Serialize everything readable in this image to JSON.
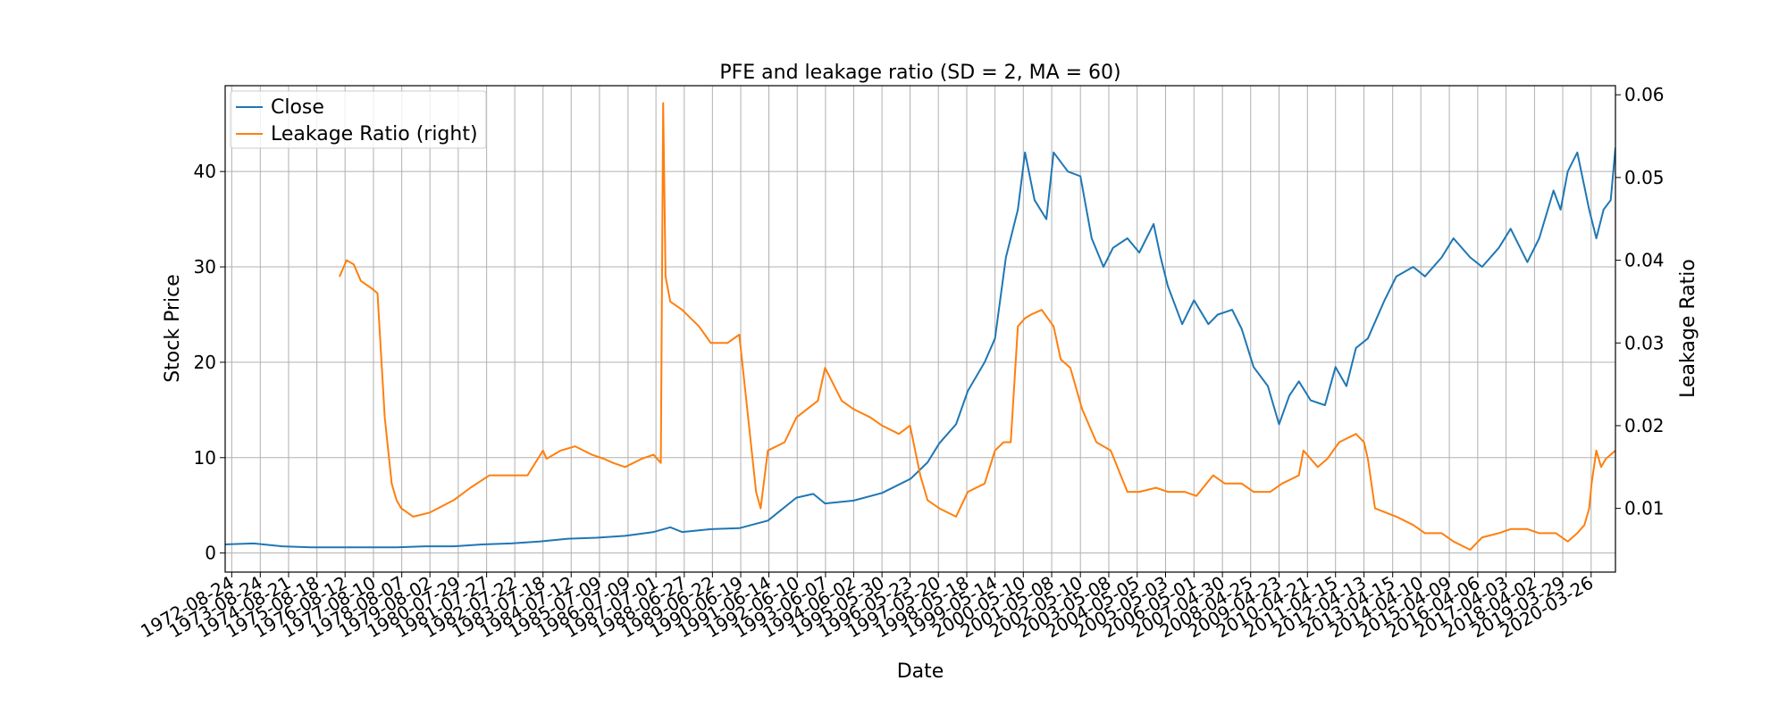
{
  "chart_data": {
    "type": "line",
    "title": "PFE and leakage ratio (SD = 2, MA = 60)",
    "xlabel": "Date",
    "ylabel": "Stock Price",
    "ylabel_right": "Leakage Ratio",
    "xlim": [
      "1972-06-01",
      "2021-01-31"
    ],
    "ylim": [
      -2,
      49
    ],
    "ylim_right": [
      0.0023,
      0.0611
    ],
    "grid": true,
    "legend_position": "top-left",
    "x_tick_labels": [
      "1972-08-24",
      "1973-08-24",
      "1974-08-21",
      "1975-08-18",
      "1976-08-12",
      "1977-08-10",
      "1978-08-07",
      "1979-08-02",
      "1980-07-29",
      "1981-07-27",
      "1982-07-22",
      "1983-07-18",
      "1984-07-12",
      "1985-07-09",
      "1986-07-09",
      "1987-07-01",
      "1988-06-27",
      "1989-06-22",
      "1990-06-19",
      "1991-06-14",
      "1992-06-10",
      "1993-06-07",
      "1994-06-02",
      "1995-05-30",
      "1996-05-23",
      "1997-05-20",
      "1998-05-18",
      "1999-05-14",
      "2000-05-10",
      "2001-05-08",
      "2002-05-10",
      "2003-05-08",
      "2004-05-05",
      "2005-05-03",
      "2006-05-01",
      "2007-04-30",
      "2008-04-25",
      "2009-04-23",
      "2010-04-21",
      "2011-04-15",
      "2012-04-13",
      "2013-04-15",
      "2014-04-10",
      "2015-04-09",
      "2016-04-06",
      "2017-04-03",
      "2018-04-02",
      "2019-03-29",
      "2020-03-26"
    ],
    "y_ticks": [
      0,
      10,
      20,
      30,
      40
    ],
    "y_ticks_right": [
      0.01,
      0.02,
      0.03,
      0.04,
      0.05,
      0.06
    ],
    "y_ticks_right_labels": [
      "0.01",
      "0.02",
      "0.03",
      "0.04",
      "0.05",
      "0.06"
    ],
    "series": [
      {
        "name": "Close",
        "axis": "left",
        "color": "#1f77b4",
        "x": [
          "1972-06-01",
          "1973-06-01",
          "1974-06-01",
          "1975-06-01",
          "1976-06-01",
          "1977-06-01",
          "1978-06-01",
          "1979-06-01",
          "1980-06-01",
          "1981-06-01",
          "1982-06-01",
          "1983-06-01",
          "1984-06-01",
          "1985-06-01",
          "1986-06-01",
          "1987-06-01",
          "1988-01-01",
          "1988-06-01",
          "1989-06-01",
          "1990-06-01",
          "1991-06-01",
          "1992-06-01",
          "1993-01-01",
          "1993-06-01",
          "1994-06-01",
          "1995-06-01",
          "1996-06-01",
          "1997-01-01",
          "1997-06-01",
          "1998-01-01",
          "1998-06-01",
          "1999-01-01",
          "1999-05-14",
          "1999-10-01",
          "2000-03-01",
          "2000-06-01",
          "2000-10-01",
          "2001-03-01",
          "2001-06-01",
          "2001-12-01",
          "2002-05-10",
          "2002-10-01",
          "2003-03-01",
          "2003-07-01",
          "2004-01-01",
          "2004-06-01",
          "2004-12-01",
          "2005-03-01",
          "2005-06-01",
          "2005-12-01",
          "2006-05-01",
          "2006-11-01",
          "2007-03-01",
          "2007-09-01",
          "2008-01-01",
          "2008-06-01",
          "2008-12-01",
          "2009-04-23",
          "2009-09-01",
          "2010-01-01",
          "2010-06-01",
          "2010-12-01",
          "2011-04-15",
          "2011-09-01",
          "2012-01-01",
          "2012-06-01",
          "2013-01-01",
          "2013-06-01",
          "2014-01-01",
          "2014-06-01",
          "2015-01-01",
          "2015-06-01",
          "2016-01-01",
          "2016-06-01",
          "2017-01-01",
          "2017-06-01",
          "2018-01-01",
          "2018-06-01",
          "2018-12-01",
          "2019-03-01",
          "2019-06-01",
          "2019-10-01",
          "2020-03-01",
          "2020-06-01",
          "2020-09-01",
          "2020-12-01",
          "2021-01-31"
        ],
        "values": [
          0.9,
          1.0,
          0.7,
          0.6,
          0.6,
          0.6,
          0.6,
          0.7,
          0.7,
          0.9,
          1.0,
          1.2,
          1.5,
          1.6,
          1.8,
          2.2,
          2.7,
          2.2,
          2.5,
          2.6,
          3.4,
          5.8,
          6.2,
          5.2,
          5.5,
          6.3,
          7.8,
          9.5,
          11.5,
          13.5,
          17.0,
          20.0,
          22.5,
          31.0,
          36.0,
          42.0,
          37.0,
          35.0,
          42.0,
          40.0,
          39.5,
          33.0,
          30.0,
          32.0,
          33.0,
          31.5,
          34.5,
          31.0,
          28.0,
          24.0,
          26.5,
          24.0,
          25.0,
          25.5,
          23.5,
          19.5,
          17.5,
          13.5,
          16.5,
          18.0,
          16.0,
          15.5,
          19.5,
          17.5,
          21.5,
          22.5,
          26.5,
          29.0,
          30.0,
          29.0,
          31.0,
          33.0,
          31.0,
          30.0,
          32.0,
          34.0,
          30.5,
          33.0,
          38.0,
          36.0,
          40.0,
          42.0,
          36.0,
          33.0,
          36.0,
          37.0,
          42.5
        ]
      },
      {
        "name": "Leakage Ratio (right)",
        "axis": "right",
        "color": "#ff7f0e",
        "x": [
          "1976-06-01",
          "1976-09-01",
          "1976-12-01",
          "1977-03-01",
          "1977-08-01",
          "1977-10-01",
          "1978-01-01",
          "1978-04-01",
          "1978-06-01",
          "1978-08-01",
          "1979-01-01",
          "1979-08-01",
          "1980-06-01",
          "1981-01-01",
          "1981-09-01",
          "1982-07-01",
          "1983-01-01",
          "1983-07-18",
          "1983-09-01",
          "1984-03-01",
          "1984-09-01",
          "1985-04-01",
          "1985-09-01",
          "1986-01-01",
          "1986-06-01",
          "1987-01-01",
          "1987-06-01",
          "1987-09-01",
          "1987-10-01",
          "1987-11-01",
          "1988-01-01",
          "1988-06-01",
          "1989-01-01",
          "1989-06-01",
          "1990-01-01",
          "1990-06-01",
          "1991-01-01",
          "1991-03-01",
          "1991-06-01",
          "1992-01-01",
          "1992-06-01",
          "1993-03-01",
          "1993-06-01",
          "1994-01-01",
          "1994-06-01",
          "1995-01-01",
          "1995-06-01",
          "1996-01-01",
          "1996-05-23",
          "1996-10-01",
          "1997-01-01",
          "1997-06-01",
          "1998-01-01",
          "1998-06-01",
          "1999-01-01",
          "1999-05-14",
          "1999-09-01",
          "1999-12-01",
          "2000-03-01",
          "2000-06-01",
          "2000-09-01",
          "2001-01-01",
          "2001-06-01",
          "2001-09-01",
          "2002-01-01",
          "2002-06-01",
          "2002-12-01",
          "2003-06-01",
          "2004-01-01",
          "2004-06-01",
          "2005-01-01",
          "2005-06-01",
          "2006-01-01",
          "2006-06-01",
          "2007-01-01",
          "2007-06-01",
          "2008-01-01",
          "2008-06-01",
          "2009-01-01",
          "2009-06-01",
          "2010-01-01",
          "2010-03-01",
          "2010-09-01",
          "2011-01-01",
          "2011-06-01",
          "2012-01-01",
          "2012-04-13",
          "2012-06-01",
          "2012-09-01",
          "2013-06-01",
          "2014-01-01",
          "2014-06-01",
          "2015-01-01",
          "2015-06-01",
          "2016-01-01",
          "2016-06-01",
          "2017-01-01",
          "2017-06-01",
          "2018-01-01",
          "2018-06-01",
          "2019-01-01",
          "2019-06-01",
          "2019-10-01",
          "2020-01-01",
          "2020-03-01",
          "2020-04-01",
          "2020-06-01",
          "2020-08-01",
          "2020-10-01",
          "2020-12-01",
          "2021-01-31"
        ],
        "values": [
          0.038,
          0.04,
          0.0395,
          0.0375,
          0.0365,
          0.036,
          0.021,
          0.013,
          0.011,
          0.01,
          0.009,
          0.0095,
          0.011,
          0.0125,
          0.014,
          0.014,
          0.014,
          0.017,
          0.016,
          0.017,
          0.0175,
          0.0165,
          0.016,
          0.0155,
          0.015,
          0.016,
          0.0165,
          0.0155,
          0.059,
          0.038,
          0.035,
          0.034,
          0.032,
          0.03,
          0.03,
          0.031,
          0.012,
          0.01,
          0.017,
          0.018,
          0.021,
          0.023,
          0.027,
          0.023,
          0.022,
          0.021,
          0.02,
          0.019,
          0.02,
          0.014,
          0.011,
          0.01,
          0.009,
          0.012,
          0.013,
          0.017,
          0.018,
          0.018,
          0.032,
          0.033,
          0.0335,
          0.034,
          0.032,
          0.028,
          0.027,
          0.022,
          0.018,
          0.017,
          0.012,
          0.012,
          0.0125,
          0.012,
          0.012,
          0.0115,
          0.014,
          0.013,
          0.013,
          0.012,
          0.012,
          0.013,
          0.014,
          0.017,
          0.015,
          0.016,
          0.018,
          0.019,
          0.018,
          0.016,
          0.01,
          0.009,
          0.008,
          0.007,
          0.007,
          0.006,
          0.005,
          0.0065,
          0.007,
          0.0075,
          0.0075,
          0.007,
          0.007,
          0.006,
          0.007,
          0.008,
          0.01,
          0.013,
          0.017,
          0.015,
          0.016,
          0.0165,
          0.017
        ]
      }
    ]
  }
}
